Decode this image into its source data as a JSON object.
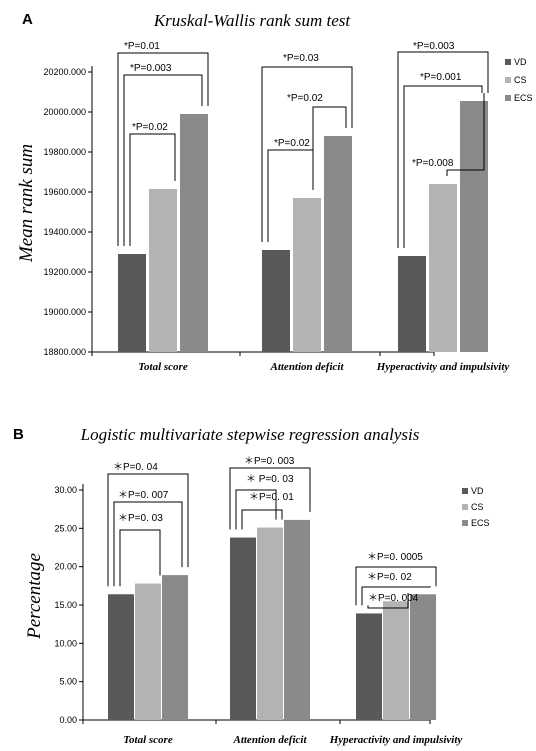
{
  "colors": {
    "VD": "#595959",
    "CS": "#b3b3b3",
    "ECS": "#8a8a8a"
  },
  "chart_data": [
    {
      "panel": "A",
      "type": "bar",
      "title": "Kruskal-Wallis rank sum test",
      "ylabel": "Mean rank sum",
      "xlabel": "",
      "ylim": [
        18800,
        20200
      ],
      "yticks": [
        18800,
        19000,
        19200,
        19400,
        19600,
        19800,
        20000,
        20200
      ],
      "ytick_labels": [
        "18800.000",
        "19000.000",
        "19200.000",
        "19400.000",
        "19600.000",
        "19800.000",
        "20000.000",
        "20200.000"
      ],
      "categories": [
        "Total score",
        "Attention deficit",
        "Hyperactivity and impulsivity"
      ],
      "series": [
        {
          "name": "VD",
          "values": [
            19290,
            19310,
            19280
          ]
        },
        {
          "name": "CS",
          "values": [
            19615,
            19570,
            19640
          ]
        },
        {
          "name": "ECS",
          "values": [
            19990,
            19880,
            20055
          ]
        }
      ],
      "legend": {
        "position": "right",
        "entries": [
          "VD",
          "CS",
          "ECS"
        ]
      },
      "annotations": [
        {
          "text": "*P=0.01",
          "category": 0,
          "from": 0,
          "to": 2
        },
        {
          "text": "*P=0.003",
          "category": 0,
          "from": 0,
          "to": 2
        },
        {
          "text": "*P=0.02",
          "category": 0,
          "from": 0,
          "to": 1
        },
        {
          "text": "*P=0.03",
          "category": 1,
          "from": 0,
          "to": 2
        },
        {
          "text": "*P=0.02",
          "category": 1,
          "from": 1,
          "to": 2
        },
        {
          "text": "*P=0.02",
          "category": 1,
          "from": 0,
          "to": 1
        },
        {
          "text": "*P=0.003",
          "category": 2,
          "from": 0,
          "to": 2
        },
        {
          "text": "*P=0.001",
          "category": 2,
          "from": 0,
          "to": 2
        },
        {
          "text": "*P=0.008",
          "category": 2,
          "from": 1,
          "to": 2
        }
      ]
    },
    {
      "panel": "B",
      "type": "bar",
      "title": "Logistic multivariate stepwise regression analysis",
      "ylabel": "Percentage",
      "xlabel": "",
      "ylim": [
        0,
        30
      ],
      "yticks": [
        0,
        5,
        10,
        15,
        20,
        25,
        30
      ],
      "ytick_labels": [
        "0.00",
        "5.00",
        "10.00",
        "15.00",
        "20.00",
        "25.00",
        "30.00"
      ],
      "categories": [
        "Total score",
        "Attention deficit",
        "Hyperactivity and impulsivity"
      ],
      "series": [
        {
          "name": "VD",
          "values": [
            16.4,
            23.8,
            13.9
          ]
        },
        {
          "name": "CS",
          "values": [
            17.8,
            25.1,
            15.5
          ]
        },
        {
          "name": "ECS",
          "values": [
            18.9,
            26.1,
            16.4
          ]
        }
      ],
      "legend": {
        "position": "right",
        "entries": [
          "VD",
          "CS",
          "ECS"
        ]
      },
      "annotations": [
        {
          "text": "＊P=0. 04",
          "category": 0,
          "from": 0,
          "to": 2
        },
        {
          "text": "＊P=0. 007",
          "category": 0,
          "from": 0,
          "to": 2
        },
        {
          "text": "＊P=0. 03",
          "category": 0,
          "from": 0,
          "to": 1
        },
        {
          "text": "＊P=0. 003",
          "category": 1,
          "from": 0,
          "to": 2
        },
        {
          "text": "＊ P=0. 03",
          "category": 1,
          "from": 0,
          "to": 1
        },
        {
          "text": "＊P=0. 01",
          "category": 1,
          "from": 0,
          "to": 1
        },
        {
          "text": "＊P=0. 0005",
          "category": 2,
          "from": 0,
          "to": 2
        },
        {
          "text": "＊P=0. 02",
          "category": 2,
          "from": 0,
          "to": 2
        },
        {
          "text": "＊P=0. 004",
          "category": 2,
          "from": 0,
          "to": 1
        }
      ]
    }
  ]
}
